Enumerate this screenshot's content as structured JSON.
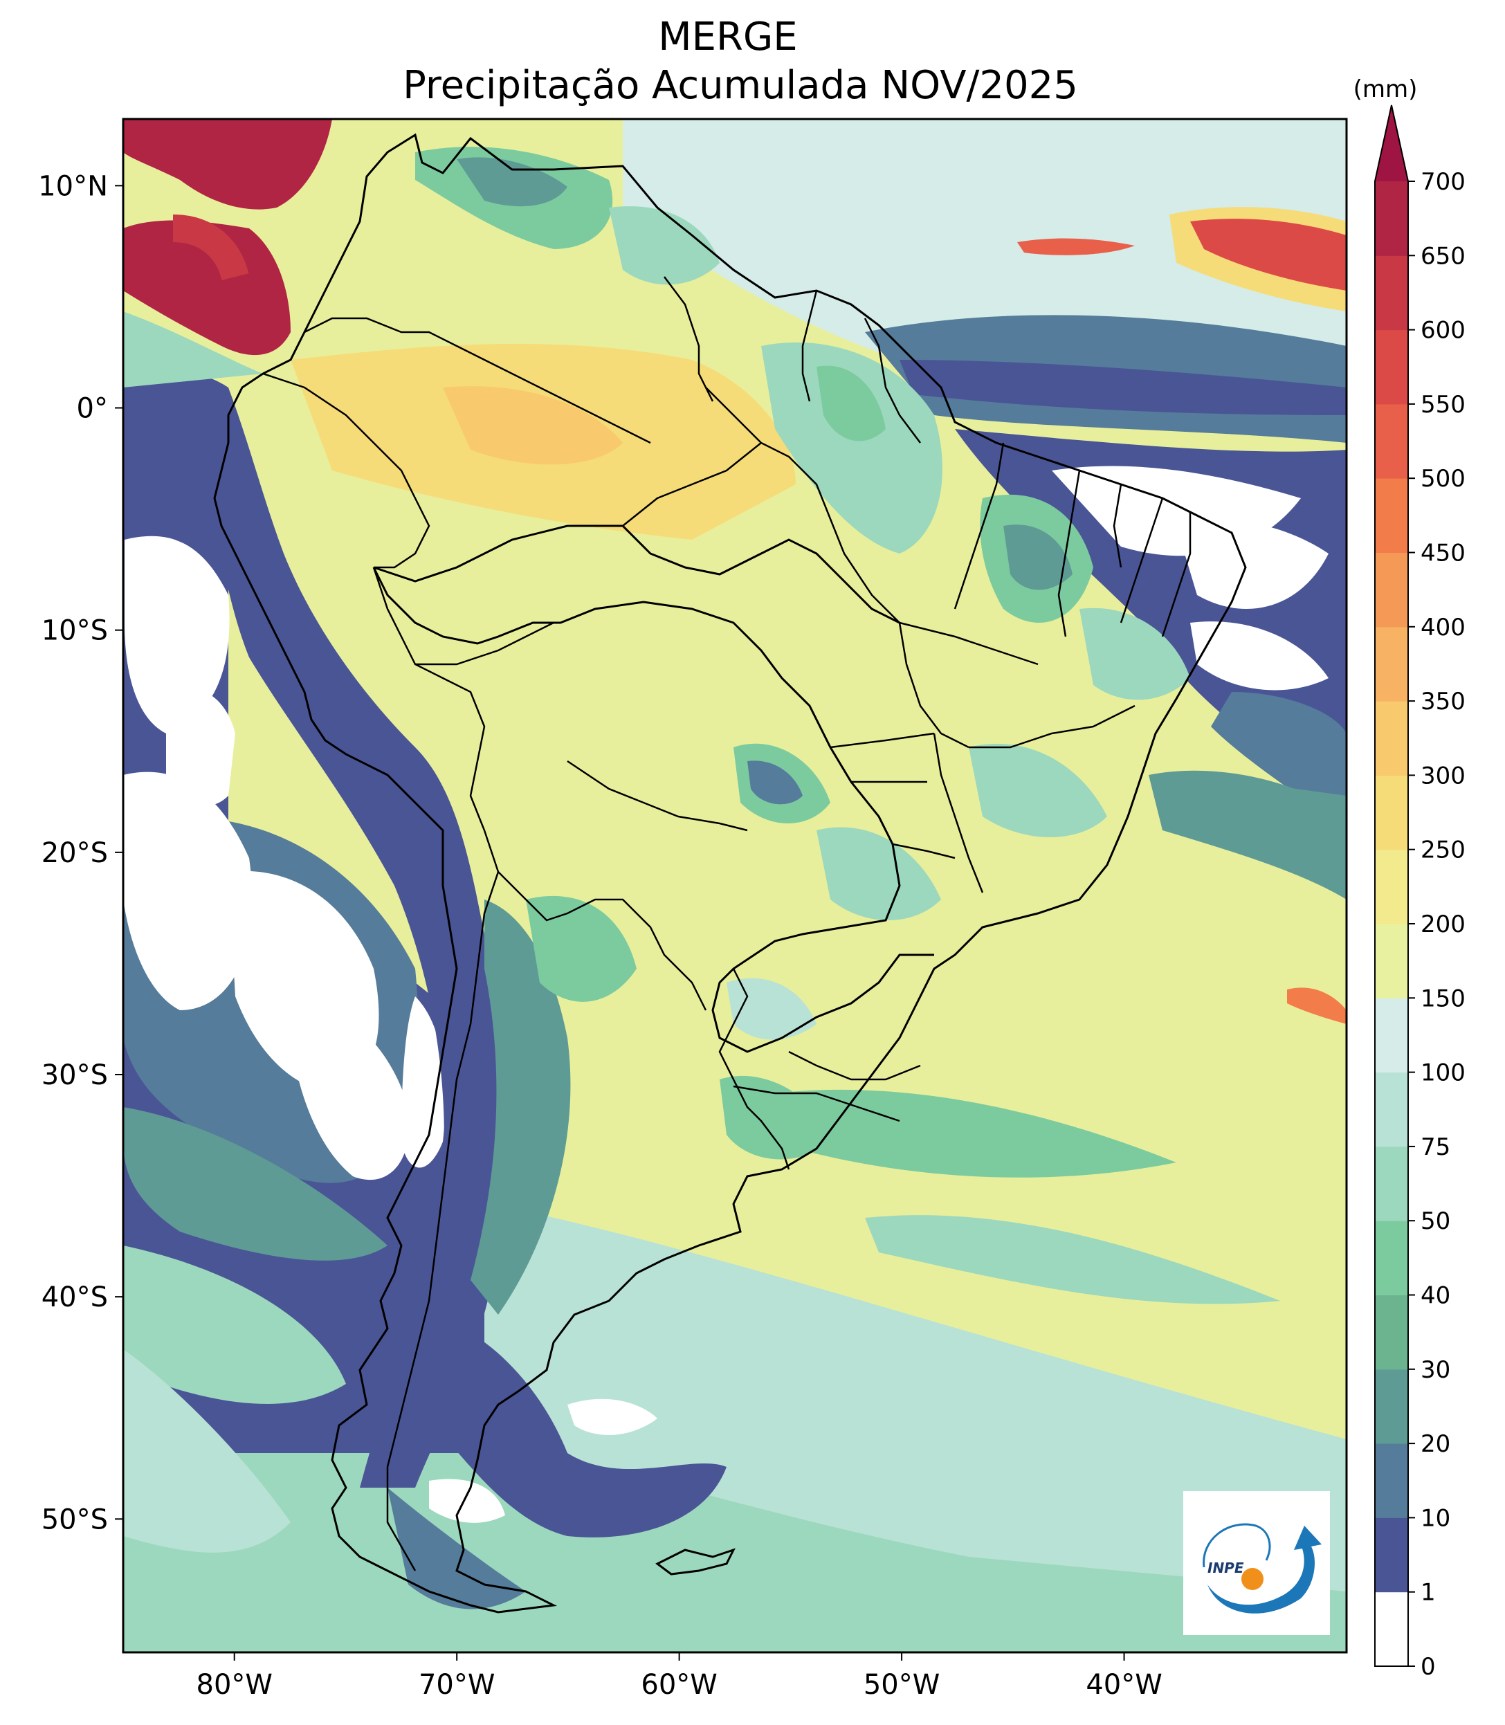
{
  "title": {
    "line1": "MERGE",
    "line2": "Precipitação Acumulada NOV/2025"
  },
  "map": {
    "lon_range": [
      -85,
      -30
    ],
    "lat_range": [
      -56,
      13
    ],
    "lon_ticks": [
      {
        "value": -80,
        "label": "80°W"
      },
      {
        "value": -70,
        "label": "70°W"
      },
      {
        "value": -60,
        "label": "60°W"
      },
      {
        "value": -50,
        "label": "50°W"
      },
      {
        "value": -40,
        "label": "40°W"
      }
    ],
    "lat_ticks": [
      {
        "value": 10,
        "label": "10°N"
      },
      {
        "value": 0,
        "label": "0°"
      },
      {
        "value": -10,
        "label": "10°S"
      },
      {
        "value": -20,
        "label": "20°S"
      },
      {
        "value": -30,
        "label": "30°S"
      },
      {
        "value": -40,
        "label": "40°S"
      },
      {
        "value": -50,
        "label": "50°S"
      }
    ]
  },
  "colorbar": {
    "unit": "(mm)",
    "levels": [
      "0",
      "1",
      "10",
      "20",
      "30",
      "40",
      "50",
      "75",
      "100",
      "150",
      "200",
      "250",
      "300",
      "350",
      "400",
      "450",
      "500",
      "550",
      "600",
      "650",
      "700"
    ],
    "colors": [
      "#ffffff",
      "#4a5596",
      "#557c9a",
      "#5f9b95",
      "#6cb38f",
      "#7ccb9f",
      "#9cd8bd",
      "#b8e2d5",
      "#d5ece8",
      "#e8f19f",
      "#f2ea8c",
      "#f6dc79",
      "#f8c96d",
      "#f7b263",
      "#f59a56",
      "#f27c4a",
      "#e9604a",
      "#dc4a47",
      "#c93845",
      "#b02544"
    ],
    "extend_color": "#9e1443"
  },
  "logo": {
    "text": "INPE"
  }
}
